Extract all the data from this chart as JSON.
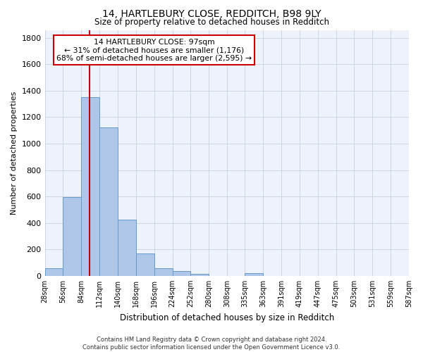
{
  "title_line1": "14, HARTLEBURY CLOSE, REDDITCH, B98 9LY",
  "title_line2": "Size of property relative to detached houses in Redditch",
  "xlabel": "Distribution of detached houses by size in Redditch",
  "ylabel": "Number of detached properties",
  "bar_color": "#aec6e8",
  "bar_edge_color": "#6699cc",
  "background_color": "#eef2fa",
  "grid_color": "#c8d0e0",
  "bin_edges": [
    28,
    56,
    84,
    112,
    140,
    168,
    196,
    224,
    252,
    280,
    308,
    335,
    363,
    391,
    419,
    447,
    475,
    503,
    531,
    559,
    587
  ],
  "values": [
    55,
    595,
    1350,
    1120,
    425,
    170,
    60,
    38,
    15,
    0,
    0,
    20,
    0,
    0,
    0,
    0,
    0,
    0,
    0,
    0
  ],
  "tick_labels": [
    "28sqm",
    "56sqm",
    "84sqm",
    "112sqm",
    "140sqm",
    "168sqm",
    "196sqm",
    "224sqm",
    "252sqm",
    "280sqm",
    "308sqm",
    "335sqm",
    "363sqm",
    "391sqm",
    "419sqm",
    "447sqm",
    "475sqm",
    "503sqm",
    "531sqm",
    "559sqm",
    "587sqm"
  ],
  "ylim": [
    0,
    1860
  ],
  "yticks": [
    0,
    200,
    400,
    600,
    800,
    1000,
    1200,
    1400,
    1600,
    1800
  ],
  "property_size": 97,
  "annotation_line1": "14 HARTLEBURY CLOSE: 97sqm",
  "annotation_line2": "← 31% of detached houses are smaller (1,176)",
  "annotation_line3": "68% of semi-detached houses are larger (2,595) →",
  "annotation_box_facecolor": "#ffffff",
  "annotation_border_color": "#cc0000",
  "red_line_color": "#cc0000",
  "footer_text": "Contains HM Land Registry data © Crown copyright and database right 2024.\nContains public sector information licensed under the Open Government Licence v3.0."
}
